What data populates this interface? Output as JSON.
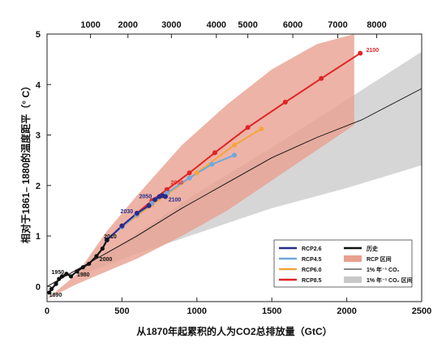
{
  "chart_data": {
    "type": "line",
    "title": "",
    "xlabel": "从1870年起累积的人为CO2总排放量（GtC）",
    "ylabel": "相对于1861– 1880的温度距平（° C）",
    "xlim": [
      0,
      2500
    ],
    "ylim": [
      -0.3,
      5
    ],
    "x_ticks": [
      0,
      500,
      1000,
      1500,
      2000,
      2500
    ],
    "y_ticks": [
      0,
      1,
      2,
      3,
      4,
      5
    ],
    "top_axis": {
      "label": "",
      "ticks": [
        1000,
        2000,
        3000,
        4000,
        5000,
        6000,
        7000,
        8000
      ],
      "tick_positions": [
        290,
        540,
        830,
        1130,
        1340,
        1640,
        1940,
        2200
      ]
    },
    "grid": false,
    "legend_position": "bottom-right",
    "colors": {
      "historical": "#111111",
      "rcp26": "#2a2a8c",
      "rcp45": "#6fa8dc",
      "rcp60": "#f5a53c",
      "rcp85": "#e02424",
      "rcp_range": "#e8a090",
      "one_pct": "#111111",
      "one_pct_range": "#c8c8c8"
    },
    "series": [
      {
        "name": "历史",
        "type": "line",
        "x": [
          15,
          30,
          60,
          80,
          100,
          130,
          160,
          200,
          240,
          280,
          330,
          370,
          400
        ],
        "y": [
          -0.12,
          -0.05,
          0.05,
          0.15,
          0.2,
          0.25,
          0.2,
          0.3,
          0.38,
          0.45,
          0.6,
          0.75,
          0.92
        ]
      },
      {
        "name": "RCP2.6",
        "type": "line",
        "x": [
          400,
          500,
          600,
          680,
          720,
          750,
          770,
          790
        ],
        "y": [
          0.92,
          1.2,
          1.45,
          1.6,
          1.72,
          1.78,
          1.8,
          1.78
        ]
      },
      {
        "name": "RCP4.5",
        "type": "line",
        "x": [
          400,
          500,
          600,
          700,
          800,
          950,
          1100,
          1250
        ],
        "y": [
          0.92,
          1.18,
          1.42,
          1.65,
          1.85,
          2.15,
          2.42,
          2.6
        ]
      },
      {
        "name": "RCP6.0",
        "type": "line",
        "x": [
          400,
          500,
          600,
          700,
          800,
          1000,
          1250,
          1430
        ],
        "y": [
          0.92,
          1.18,
          1.4,
          1.62,
          1.82,
          2.25,
          2.8,
          3.12
        ]
      },
      {
        "name": "RCP8.5",
        "type": "line",
        "x": [
          400,
          500,
          600,
          700,
          800,
          950,
          1120,
          1340,
          1590,
          1830,
          2090
        ],
        "y": [
          0.92,
          1.2,
          1.45,
          1.7,
          1.92,
          2.25,
          2.65,
          3.15,
          3.65,
          4.12,
          4.62
        ]
      },
      {
        "name": "1% 年⁻¹ CO₂",
        "type": "line",
        "x": [
          0,
          300,
          600,
          900,
          1200,
          1500,
          1800,
          2100,
          2500
        ],
        "y": [
          0,
          0.5,
          1.0,
          1.55,
          2.05,
          2.55,
          2.95,
          3.3,
          3.92
        ]
      }
    ],
    "bands": [
      {
        "name": "RCP 区间",
        "x": [
          0,
          200,
          400,
          600,
          900,
          1200,
          1500,
          1800,
          2050,
          2050,
          1800,
          1500,
          1200,
          900,
          600,
          400,
          200,
          0
        ],
        "y": [
          -0.25,
          0.25,
          1.1,
          1.8,
          2.8,
          3.6,
          4.3,
          4.8,
          5.0,
          3.2,
          2.7,
          2.1,
          1.5,
          1.0,
          0.55,
          0.3,
          0.05,
          -0.25
        ]
      },
      {
        "name": "1% 年⁻¹ CO₂ 区间",
        "x": [
          200,
          600,
          1000,
          1500,
          2000,
          2500,
          2500,
          2000,
          1500,
          1000,
          600,
          200
        ],
        "y": [
          0.25,
          1.05,
          1.85,
          2.75,
          3.7,
          4.65,
          2.4,
          1.95,
          1.55,
          1.05,
          0.65,
          0.2
        ]
      }
    ],
    "annotations": [
      {
        "text": "1950",
        "x": 30,
        "y": 0.25,
        "color": "#111111"
      },
      {
        "text": "1890",
        "x": 15,
        "y": -0.2,
        "color": "#111111"
      },
      {
        "text": "1980",
        "x": 200,
        "y": 0.2,
        "color": "#111111"
      },
      {
        "text": "2000",
        "x": 350,
        "y": 0.5,
        "color": "#111111"
      },
      {
        "text": "2010",
        "x": 380,
        "y": 0.95,
        "color": "#111111"
      },
      {
        "text": "2030",
        "x": 490,
        "y": 1.45,
        "color": "#2a2a8c"
      },
      {
        "text": "2050",
        "x": 615,
        "y": 1.75,
        "color": "#2a2a8c"
      },
      {
        "text": "2050",
        "x": 825,
        "y": 2.02,
        "color": "#e02424"
      },
      {
        "text": "2100",
        "x": 810,
        "y": 1.68,
        "color": "#2a2a8c"
      },
      {
        "text": "2100",
        "x": 2130,
        "y": 4.65,
        "color": "#e02424"
      }
    ],
    "legend": [
      {
        "label": "RCP2.6",
        "type": "line",
        "color": "#2a2a8c"
      },
      {
        "label": "RCP4.5",
        "type": "line",
        "color": "#6fa8dc"
      },
      {
        "label": "RCP6.0",
        "type": "line",
        "color": "#f5a53c"
      },
      {
        "label": "RCP8.5",
        "type": "line",
        "color": "#e02424"
      },
      {
        "label": "历史",
        "type": "line",
        "color": "#111111"
      },
      {
        "label": "RCP 区间",
        "type": "patch",
        "color": "#e8a090"
      },
      {
        "label": "1% 年⁻¹ CO₂",
        "type": "thinline",
        "color": "#111111"
      },
      {
        "label": "1% 年⁻¹ CO₂ 区间",
        "type": "patch",
        "color": "#c8c8c8"
      }
    ]
  }
}
